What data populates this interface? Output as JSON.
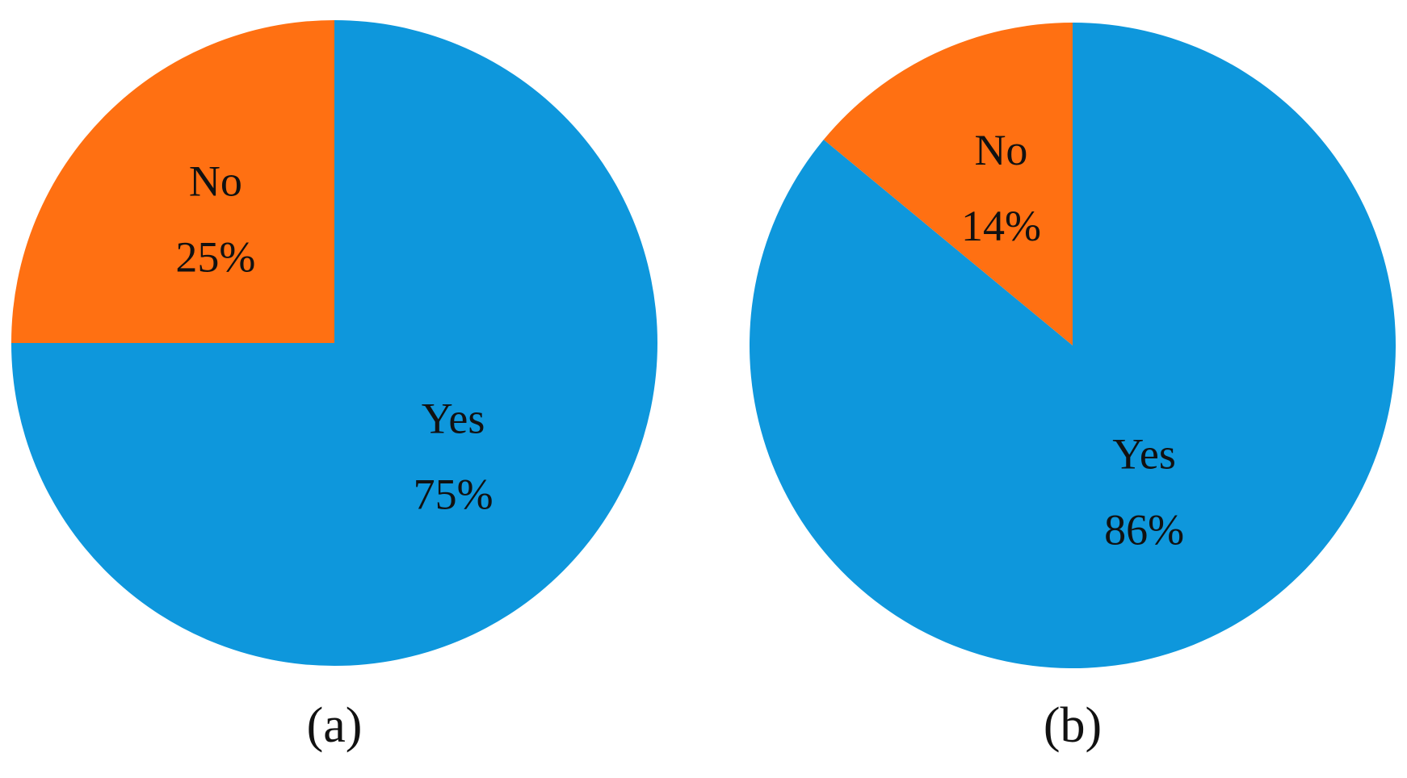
{
  "chart_data": [
    {
      "type": "pie",
      "label": "(a)",
      "categories": [
        "Yes",
        "No"
      ],
      "values": [
        75,
        25
      ],
      "value_labels": [
        "75%",
        "25%"
      ],
      "colors": [
        "#0e97dc",
        "#ff7012"
      ]
    },
    {
      "type": "pie",
      "label": "(b)",
      "categories": [
        "Yes",
        "No"
      ],
      "values": [
        86,
        14
      ],
      "value_labels": [
        "86%",
        "14%"
      ],
      "colors": [
        "#0e97dc",
        "#ff7012"
      ]
    }
  ]
}
